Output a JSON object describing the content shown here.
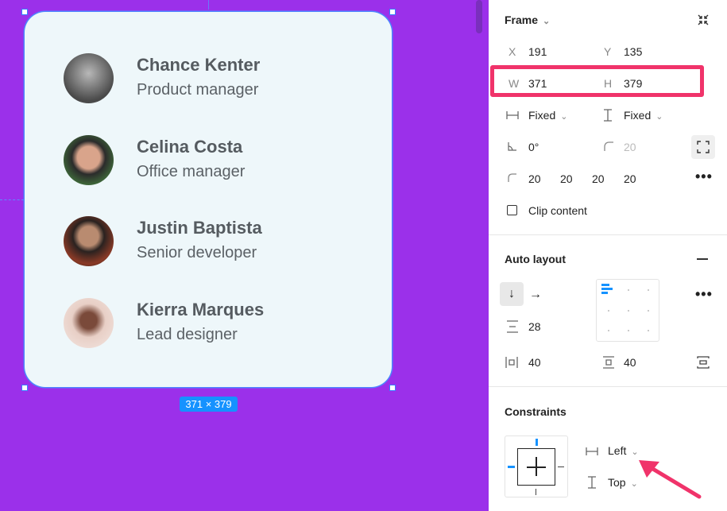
{
  "canvas": {
    "size_badge": "371 × 379",
    "people": [
      {
        "name": "Chance Kenter",
        "role": "Product manager"
      },
      {
        "name": "Celina Costa",
        "role": "Office manager"
      },
      {
        "name": "Justin Baptista",
        "role": "Senior developer"
      },
      {
        "name": "Kierra Marques",
        "role": "Lead designer"
      }
    ]
  },
  "panel": {
    "frame": {
      "title": "Frame",
      "x_label": "X",
      "x_value": "191",
      "y_label": "Y",
      "y_value": "135",
      "w_label": "W",
      "w_value": "371",
      "h_label": "H",
      "h_value": "379",
      "width_mode": "Fixed",
      "height_mode": "Fixed",
      "rotation": "0°",
      "corner_radius": "20",
      "corners": [
        "20",
        "20",
        "20",
        "20"
      ],
      "clip_content_label": "Clip content"
    },
    "auto_layout": {
      "title": "Auto layout",
      "spacing": "28",
      "padding_h": "40",
      "padding_v": "40"
    },
    "constraints": {
      "title": "Constraints",
      "horizontal": "Left",
      "vertical": "Top"
    }
  },
  "colors": {
    "canvas_bg": "#9b30ea",
    "selection": "#4c86ff",
    "highlight": "#f0336a",
    "accent": "#1592ff"
  }
}
